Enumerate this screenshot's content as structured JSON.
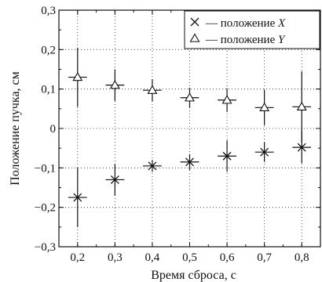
{
  "chart_data": {
    "type": "scatter",
    "xlabel": "Время сброса, с",
    "ylabel": "Положение пучка, см",
    "xlim": [
      0.15,
      0.85
    ],
    "ylim": [
      -0.3,
      0.3
    ],
    "x_ticks": [
      0.2,
      0.3,
      0.4,
      0.5,
      0.6,
      0.7,
      0.8
    ],
    "x_tick_labels": [
      "0,2",
      "0,3",
      "0,4",
      "0,5",
      "0,6",
      "0,7",
      "0,8"
    ],
    "y_ticks": [
      -0.3,
      -0.2,
      -0.1,
      0,
      0.1,
      0.2,
      0.3
    ],
    "y_tick_labels": [
      "−0,3",
      "−0,2",
      "−0,1",
      "0",
      "0,1",
      "0,2",
      "0,3"
    ],
    "grid": true,
    "legend_position": "top-right",
    "x_error": 0.025,
    "series": [
      {
        "name": "— положение",
        "name_var": "X",
        "marker": "x",
        "points": [
          {
            "x": 0.2,
            "y": -0.175,
            "yerr": 0.075
          },
          {
            "x": 0.3,
            "y": -0.13,
            "yerr": 0.04
          },
          {
            "x": 0.4,
            "y": -0.095,
            "yerr": 0.015
          },
          {
            "x": 0.5,
            "y": -0.085,
            "yerr": 0.02
          },
          {
            "x": 0.6,
            "y": -0.07,
            "yerr": 0.04
          },
          {
            "x": 0.7,
            "y": -0.06,
            "yerr": 0.025
          },
          {
            "x": 0.8,
            "y": -0.048,
            "yerr": 0.04
          }
        ]
      },
      {
        "name": "— положение",
        "name_var": "Y",
        "marker": "triangle",
        "points": [
          {
            "x": 0.2,
            "y": 0.13,
            "yerr": 0.075
          },
          {
            "x": 0.3,
            "y": 0.11,
            "yerr": 0.04
          },
          {
            "x": 0.4,
            "y": 0.097,
            "yerr": 0.028
          },
          {
            "x": 0.5,
            "y": 0.078,
            "yerr": 0.025
          },
          {
            "x": 0.6,
            "y": 0.072,
            "yerr": 0.03
          },
          {
            "x": 0.7,
            "y": 0.053,
            "yerr": 0.045
          },
          {
            "x": 0.8,
            "y": 0.055,
            "yerr": 0.09
          }
        ]
      }
    ]
  }
}
